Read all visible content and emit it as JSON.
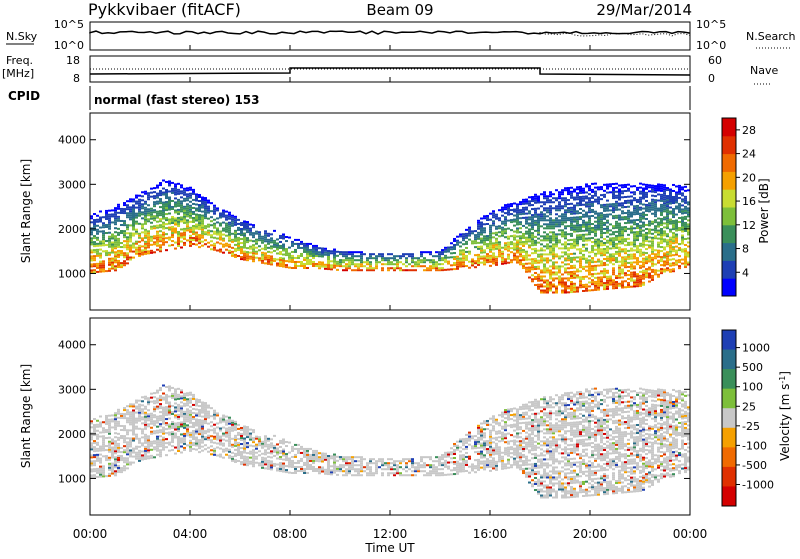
{
  "header": {
    "station": "Pykkvibaer (fitACF)",
    "beam": "Beam 09",
    "date": "29/Mar/2014"
  },
  "panels": {
    "nsky_label": "N.Sky",
    "nsky_ticks": [
      "10^5",
      "10^0"
    ],
    "nsearch_label": "N.Search",
    "nsearch_ticks": [
      "10^5",
      "10^0"
    ],
    "freq_label": "Freq.",
    "freq_unit": "[MHz]",
    "freq_ticks": [
      "18",
      "8"
    ],
    "nave_label": "Nave",
    "nave_ticks": [
      "60",
      "0"
    ],
    "cpid_label": "CPID",
    "cpid_value": "normal (fast stereo) 153"
  },
  "colors": {
    "power_scale": [
      "#0000ff",
      "#1e3fb4",
      "#2a6e8a",
      "#3a8f5a",
      "#7dbf3a",
      "#c8dc32",
      "#f5a000",
      "#f06a00",
      "#e03000",
      "#d40000"
    ],
    "velocity_scale": [
      "#1e3fb4",
      "#2a6e8a",
      "#3a8f5a",
      "#7dbf3a",
      "#c8c8c8",
      "#f5a000",
      "#f06a00",
      "#e03000",
      "#d40000"
    ],
    "ground_scatter": "#a8a8a8"
  },
  "chart_data": [
    {
      "type": "heatmap",
      "panel": "power",
      "ylabel": "Slant Range [km]",
      "yticks": [
        1000,
        2000,
        3000,
        4000
      ],
      "ylim": [
        180,
        4600
      ],
      "colorbar": {
        "label": "Power [dB]",
        "ticks": [
          4,
          8,
          12,
          16,
          20,
          24,
          28
        ],
        "range": [
          0,
          30
        ]
      },
      "x": [
        "00:00",
        "04:00",
        "08:00",
        "12:00",
        "16:00",
        "20:00",
        "00:00"
      ],
      "xlim_hours": [
        0,
        24
      ],
      "scatter_band_lower_km": [
        1000,
        1050,
        1400,
        1500,
        1600,
        1500,
        1300,
        1200,
        1100,
        1100,
        1050,
        1050,
        1050,
        1050,
        1050,
        1100,
        1150,
        1250,
        550,
        550,
        600,
        650,
        700,
        1000,
        1100
      ],
      "scatter_band_upper_km": [
        2300,
        2500,
        2800,
        3100,
        2900,
        2500,
        2200,
        2000,
        1800,
        1600,
        1500,
        1450,
        1450,
        1450,
        1500,
        2000,
        2400,
        2600,
        2800,
        2900,
        3000,
        3000,
        3000,
        3000,
        2900
      ],
      "hours": [
        0,
        1,
        2,
        3,
        4,
        5,
        6,
        7,
        8,
        9,
        10,
        11,
        12,
        13,
        14,
        15,
        16,
        17,
        18,
        19,
        20,
        21,
        22,
        23,
        24
      ]
    },
    {
      "type": "heatmap",
      "panel": "velocity",
      "ylabel": "Slant Range [km]",
      "yticks": [
        1000,
        2000,
        3000,
        4000
      ],
      "ylim": [
        180,
        4600
      ],
      "colorbar": {
        "label": "Velocity [m s^-1]",
        "ticks": [
          1000,
          500,
          100,
          25,
          -25,
          -100,
          -500,
          -1000
        ]
      },
      "xticks": [
        "00:00",
        "04:00",
        "08:00",
        "12:00",
        "16:00",
        "20:00",
        "00:00"
      ],
      "xlabel": "Time UT"
    }
  ]
}
